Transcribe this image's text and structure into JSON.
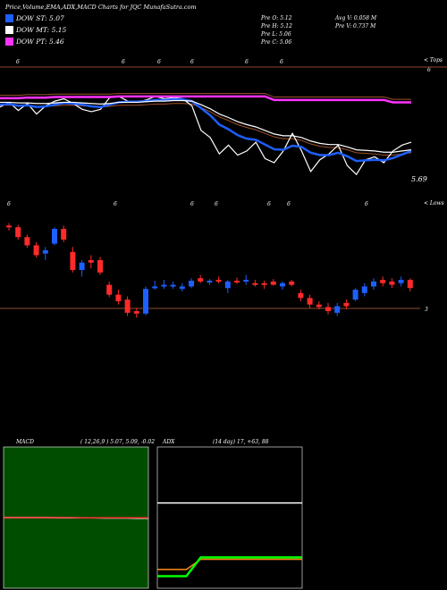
{
  "header": {
    "title": "Price,Volume,EMA,ADX,MACD Charts for JQC MunafaSutra.com",
    "legend": [
      {
        "label": "DOW ST: 5.07",
        "color": "#1e5fff"
      },
      {
        "label": "DOW MT: 5.15",
        "color": "#ffffff"
      },
      {
        "label": "DOW PT: 5.46",
        "color": "#ff33ff"
      }
    ],
    "prev": {
      "open": "Pre   O: 5.12",
      "high": "Pre   H: 5.12",
      "low": "Pre   L: 5.06",
      "close": "Pre   C: 5.06"
    },
    "volume": {
      "avg": "Avg V: 0.058  M",
      "prev": "Pre   V: 0.737 M"
    }
  },
  "top_panel": {
    "right_label": "< Tops",
    "last_value": "5.69",
    "top_line_value": "6",
    "marks": [
      "6",
      "6",
      "6",
      "6",
      "6",
      "6"
    ]
  },
  "candle_panel": {
    "right_label": "< Lows",
    "base_value": "3",
    "marks": [
      "6",
      "6",
      "6",
      "6",
      "6",
      "6",
      "6"
    ]
  },
  "macd_panel": {
    "label": "MACD",
    "params": "( 12,26,9 ) 5.07, 5.09, -0.02"
  },
  "adx_panel": {
    "label": "ADX",
    "params": "(14 day) 17, +63, 88"
  },
  "chart_data": [
    {
      "type": "line",
      "panel": "price-ema",
      "x": [
        0,
        1,
        2,
        3,
        4,
        5,
        6,
        7,
        8,
        9,
        10,
        11,
        12,
        13,
        14,
        15,
        16,
        17,
        18,
        19,
        20,
        21,
        22,
        23,
        24,
        25,
        26,
        27,
        28,
        29,
        30,
        31,
        32,
        33,
        34,
        35,
        36,
        37,
        38,
        39,
        40,
        41,
        42,
        43,
        44,
        45
      ],
      "series": [
        {
          "name": "price",
          "color": "#ffffff",
          "values": [
            5.7,
            5.78,
            5.64,
            5.76,
            5.58,
            5.72,
            5.8,
            5.84,
            5.76,
            5.66,
            5.62,
            5.66,
            5.86,
            5.88,
            5.8,
            5.78,
            5.82,
            5.88,
            5.84,
            5.86,
            5.84,
            5.72,
            5.3,
            5.18,
            4.9,
            5.05,
            4.88,
            4.95,
            5.1,
            4.82,
            4.75,
            4.95,
            5.25,
            4.95,
            4.6,
            4.8,
            4.9,
            5.05,
            4.7,
            4.55,
            4.8,
            4.85,
            4.75,
            4.95,
            5.05,
            5.1
          ]
        },
        {
          "name": "DOW ST",
          "color": "#1e5fff",
          "values": [
            5.74,
            5.75,
            5.72,
            5.73,
            5.7,
            5.71,
            5.74,
            5.77,
            5.76,
            5.74,
            5.71,
            5.7,
            5.74,
            5.78,
            5.79,
            5.79,
            5.8,
            5.82,
            5.82,
            5.83,
            5.83,
            5.8,
            5.68,
            5.56,
            5.4,
            5.32,
            5.22,
            5.16,
            5.14,
            5.06,
            4.98,
            4.97,
            5.04,
            5.02,
            4.92,
            4.88,
            4.88,
            4.92,
            4.86,
            4.78,
            4.79,
            4.8,
            4.79,
            4.83,
            4.89,
            4.95
          ]
        },
        {
          "name": "DOW MT",
          "color": "#ffffff",
          "values": [
            5.78,
            5.78,
            5.77,
            5.77,
            5.76,
            5.76,
            5.77,
            5.78,
            5.78,
            5.77,
            5.76,
            5.75,
            5.76,
            5.78,
            5.78,
            5.78,
            5.79,
            5.8,
            5.8,
            5.81,
            5.81,
            5.8,
            5.74,
            5.67,
            5.58,
            5.52,
            5.45,
            5.4,
            5.36,
            5.3,
            5.24,
            5.21,
            5.21,
            5.18,
            5.12,
            5.08,
            5.06,
            5.06,
            5.02,
            4.97,
            4.96,
            4.95,
            4.93,
            4.93,
            4.95,
            4.97
          ]
        },
        {
          "name": "DOW PT",
          "color": "#ff33ff",
          "values": [
            5.85,
            5.85,
            5.85,
            5.86,
            5.86,
            5.86,
            5.87,
            5.87,
            5.87,
            5.87,
            5.87,
            5.87,
            5.87,
            5.88,
            5.88,
            5.88,
            5.88,
            5.88,
            5.88,
            5.88,
            5.88,
            5.88,
            5.88,
            5.88,
            5.88,
            5.88,
            5.88,
            5.88,
            5.88,
            5.88,
            5.82,
            5.82,
            5.82,
            5.82,
            5.82,
            5.82,
            5.82,
            5.82,
            5.82,
            5.82,
            5.82,
            5.82,
            5.82,
            5.78,
            5.78,
            5.78
          ]
        }
      ]
    },
    {
      "type": "candlestick",
      "panel": "price-candles",
      "candles": [
        {
          "o": 5.72,
          "h": 5.75,
          "l": 5.66,
          "c": 5.7,
          "up": false
        },
        {
          "o": 5.7,
          "h": 5.73,
          "l": 5.55,
          "c": 5.58,
          "up": false
        },
        {
          "o": 5.58,
          "h": 5.61,
          "l": 5.45,
          "c": 5.48,
          "up": false
        },
        {
          "o": 5.48,
          "h": 5.52,
          "l": 5.33,
          "c": 5.36,
          "up": false
        },
        {
          "o": 5.38,
          "h": 5.46,
          "l": 5.3,
          "c": 5.42,
          "up": true
        },
        {
          "o": 5.5,
          "h": 5.7,
          "l": 5.48,
          "c": 5.68,
          "up": true
        },
        {
          "o": 5.68,
          "h": 5.72,
          "l": 5.52,
          "c": 5.55,
          "up": false
        },
        {
          "o": 5.4,
          "h": 5.46,
          "l": 5.15,
          "c": 5.18,
          "up": false
        },
        {
          "o": 5.18,
          "h": 5.3,
          "l": 5.1,
          "c": 5.27,
          "up": true
        },
        {
          "o": 5.27,
          "h": 5.36,
          "l": 5.2,
          "c": 5.3,
          "up": false
        },
        {
          "o": 5.3,
          "h": 5.34,
          "l": 5.12,
          "c": 5.15,
          "up": false
        },
        {
          "o": 5.0,
          "h": 5.04,
          "l": 4.85,
          "c": 4.88,
          "up": false
        },
        {
          "o": 4.88,
          "h": 4.94,
          "l": 4.76,
          "c": 4.8,
          "up": false
        },
        {
          "o": 4.82,
          "h": 4.86,
          "l": 4.62,
          "c": 4.66,
          "up": false
        },
        {
          "o": 4.68,
          "h": 4.72,
          "l": 4.6,
          "c": 4.65,
          "up": false
        },
        {
          "o": 4.65,
          "h": 4.98,
          "l": 4.63,
          "c": 4.95,
          "up": true
        },
        {
          "o": 4.96,
          "h": 5.05,
          "l": 4.94,
          "c": 4.98,
          "up": true
        },
        {
          "o": 4.98,
          "h": 5.06,
          "l": 4.95,
          "c": 5.0,
          "up": true
        },
        {
          "o": 4.99,
          "h": 5.04,
          "l": 4.95,
          "c": 5.0,
          "up": true
        },
        {
          "o": 4.95,
          "h": 5.02,
          "l": 4.92,
          "c": 4.98,
          "up": true
        },
        {
          "o": 4.98,
          "h": 5.08,
          "l": 4.96,
          "c": 5.05,
          "up": true
        },
        {
          "o": 5.08,
          "h": 5.12,
          "l": 5.02,
          "c": 5.04,
          "up": false
        },
        {
          "o": 5.04,
          "h": 5.07,
          "l": 5.0,
          "c": 5.05,
          "up": true
        },
        {
          "o": 5.06,
          "h": 5.1,
          "l": 5.02,
          "c": 5.04,
          "up": false
        },
        {
          "o": 5.04,
          "h": 5.06,
          "l": 4.9,
          "c": 4.96,
          "up": true
        },
        {
          "o": 5.05,
          "h": 5.09,
          "l": 5.01,
          "c": 5.04,
          "up": false
        },
        {
          "o": 5.04,
          "h": 5.12,
          "l": 5.0,
          "c": 5.06,
          "up": true
        },
        {
          "o": 5.02,
          "h": 5.06,
          "l": 4.98,
          "c": 5.0,
          "up": false
        },
        {
          "o": 5.0,
          "h": 5.05,
          "l": 4.95,
          "c": 5.02,
          "up": false
        },
        {
          "o": 5.04,
          "h": 5.07,
          "l": 4.99,
          "c": 5.0,
          "up": false
        },
        {
          "o": 4.98,
          "h": 5.04,
          "l": 4.94,
          "c": 5.02,
          "up": true
        },
        {
          "o": 5.04,
          "h": 5.06,
          "l": 4.98,
          "c": 5.0,
          "up": false
        },
        {
          "o": 4.9,
          "h": 4.94,
          "l": 4.8,
          "c": 4.84,
          "up": false
        },
        {
          "o": 4.84,
          "h": 4.88,
          "l": 4.72,
          "c": 4.76,
          "up": false
        },
        {
          "o": 4.76,
          "h": 4.8,
          "l": 4.7,
          "c": 4.73,
          "up": false
        },
        {
          "o": 4.73,
          "h": 4.78,
          "l": 4.64,
          "c": 4.68,
          "up": false
        },
        {
          "o": 4.66,
          "h": 4.78,
          "l": 4.62,
          "c": 4.74,
          "up": true
        },
        {
          "o": 4.74,
          "h": 4.82,
          "l": 4.7,
          "c": 4.78,
          "up": false
        },
        {
          "o": 4.82,
          "h": 4.96,
          "l": 4.8,
          "c": 4.94,
          "up": true
        },
        {
          "o": 4.9,
          "h": 5.02,
          "l": 4.86,
          "c": 4.98,
          "up": true
        },
        {
          "o": 4.98,
          "h": 5.08,
          "l": 4.94,
          "c": 5.04,
          "up": true
        },
        {
          "o": 5.06,
          "h": 5.1,
          "l": 4.98,
          "c": 5.02,
          "up": false
        },
        {
          "o": 5.04,
          "h": 5.08,
          "l": 4.96,
          "c": 5.0,
          "up": false
        },
        {
          "o": 5.02,
          "h": 5.1,
          "l": 4.98,
          "c": 5.06,
          "up": true
        },
        {
          "o": 5.06,
          "h": 5.08,
          "l": 4.92,
          "c": 4.96,
          "up": false
        }
      ]
    },
    {
      "type": "line",
      "panel": "macd",
      "series": [
        {
          "name": "MACD",
          "color": "#ffffff",
          "values": [
            5.1,
            5.1,
            5.1,
            5.1,
            5.1,
            5.09,
            5.09,
            5.09,
            5.09,
            5.08,
            5.08,
            5.08,
            5.07,
            5.07
          ]
        },
        {
          "name": "Signal",
          "color": "#ff3333",
          "values": [
            5.1,
            5.1,
            5.1,
            5.1,
            5.1,
            5.1,
            5.1,
            5.09,
            5.09,
            5.09,
            5.09,
            5.09,
            5.09,
            5.09
          ]
        }
      ]
    },
    {
      "type": "line",
      "panel": "adx",
      "series": [
        {
          "name": "ADX",
          "color": "#ffffff",
          "values": [
            88,
            88,
            88,
            88,
            88,
            88,
            88,
            88,
            88,
            88,
            88
          ]
        },
        {
          "name": "+DI",
          "color": "#ff8c1a",
          "values": [
            17,
            17,
            17,
            28,
            28,
            28,
            28,
            28,
            28,
            28,
            28
          ]
        },
        {
          "name": "-DI",
          "color": "#00ff00",
          "values": [
            10,
            10,
            10,
            30,
            30,
            30,
            30,
            30,
            30,
            30,
            30
          ]
        }
      ]
    }
  ]
}
